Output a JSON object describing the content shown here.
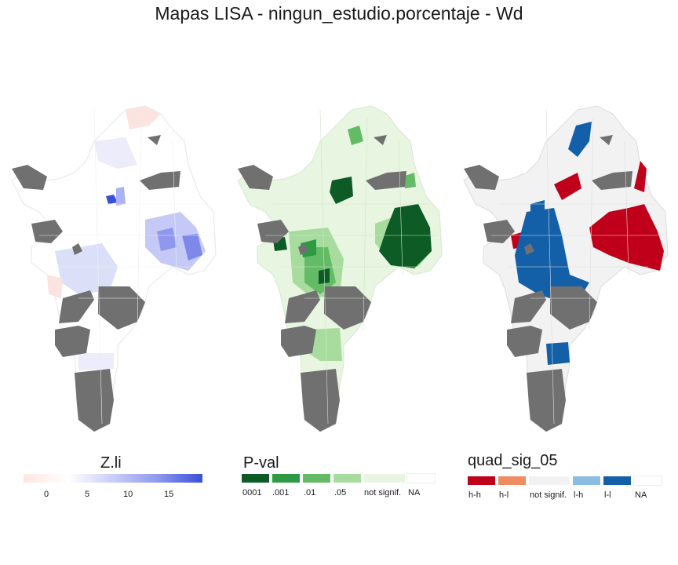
{
  "title": "Mapas LISA - ningun_estudio.porcentaje - Wd",
  "legends": {
    "zli": {
      "title": "Z.li",
      "ticks": [
        "0",
        "5",
        "10",
        "15"
      ],
      "gradient": [
        "#ffe6e0",
        "#ffffff",
        "#c9cdf7",
        "#8f98ee",
        "#3a4fd8"
      ]
    },
    "pval": {
      "title": "P-val",
      "items": [
        {
          "label": "0001",
          "color": "#0d5c25"
        },
        {
          "label": ".001",
          "color": "#2e9a44"
        },
        {
          "label": ".01",
          "color": "#63bb65"
        },
        {
          "label": ".05",
          "color": "#a8dc9f"
        },
        {
          "label": "not signif.",
          "color": "#e8f5e1"
        },
        {
          "label": "NA",
          "color": "#ffffff"
        }
      ]
    },
    "quad": {
      "title": "quad_sig_05",
      "items": [
        {
          "label": "h-h",
          "color": "#c0001a"
        },
        {
          "label": "h-l",
          "color": "#ef8c62"
        },
        {
          "label": "not signif.",
          "color": "#f2f2f2"
        },
        {
          "label": "l-h",
          "color": "#8bbde0"
        },
        {
          "label": "l-l",
          "color": "#1460a8"
        },
        {
          "label": "NA",
          "color": "#ffffff"
        }
      ]
    }
  },
  "colors": {
    "na_polygon": "#707070",
    "boundary": "#dcdcdc"
  }
}
